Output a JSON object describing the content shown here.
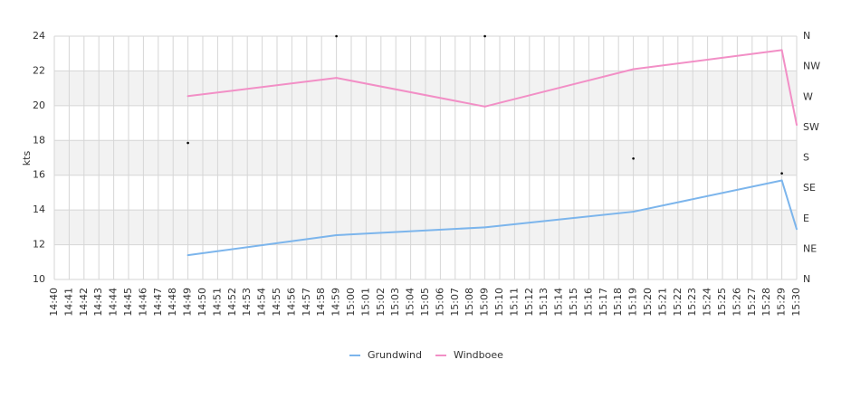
{
  "chart_data": {
    "type": "line",
    "y_label": "kts",
    "categories": [
      "14:40",
      "14:41",
      "14:42",
      "14:43",
      "14:44",
      "14:45",
      "14:46",
      "14:47",
      "14:48",
      "14:49",
      "14:50",
      "14:51",
      "14:52",
      "14:53",
      "14:54",
      "14:55",
      "14:56",
      "14:57",
      "14:58",
      "14:59",
      "15:00",
      "15:01",
      "15:02",
      "15:03",
      "15:04",
      "15:05",
      "15:06",
      "15:07",
      "15:08",
      "15:09",
      "15:10",
      "15:11",
      "15:12",
      "15:13",
      "15:14",
      "15:15",
      "15:16",
      "15:17",
      "15:18",
      "15:19",
      "15:20",
      "15:21",
      "15:22",
      "15:23",
      "15:24",
      "15:25",
      "15:26",
      "15:27",
      "15:28",
      "15:29",
      "15:30"
    ],
    "series": [
      {
        "name": "Grundwind",
        "color": "#7cb5ec",
        "values": [
          null,
          null,
          null,
          null,
          null,
          null,
          null,
          null,
          null,
          11.4,
          null,
          null,
          null,
          null,
          null,
          null,
          null,
          null,
          null,
          12.55,
          null,
          null,
          null,
          null,
          null,
          null,
          null,
          null,
          null,
          13.0,
          null,
          null,
          null,
          null,
          null,
          null,
          null,
          null,
          null,
          13.9,
          null,
          null,
          null,
          null,
          null,
          null,
          null,
          null,
          null,
          15.7,
          12.9
        ]
      },
      {
        "name": "Windboee",
        "color": "#f28fc6",
        "values": [
          null,
          null,
          null,
          null,
          null,
          null,
          null,
          null,
          null,
          20.55,
          null,
          null,
          null,
          null,
          null,
          null,
          null,
          null,
          null,
          21.6,
          null,
          null,
          null,
          null,
          null,
          null,
          null,
          null,
          null,
          19.95,
          null,
          null,
          null,
          null,
          null,
          null,
          null,
          null,
          null,
          22.1,
          null,
          null,
          null,
          null,
          null,
          null,
          null,
          null,
          null,
          23.2,
          18.9
        ]
      }
    ],
    "direction": {
      "axis": "y2",
      "color": "#000000",
      "values": [
        null,
        null,
        null,
        null,
        null,
        null,
        null,
        null,
        null,
        202,
        null,
        null,
        null,
        null,
        null,
        null,
        null,
        null,
        null,
        360,
        null,
        null,
        null,
        null,
        null,
        null,
        null,
        null,
        null,
        360,
        null,
        null,
        null,
        null,
        null,
        null,
        null,
        null,
        null,
        179,
        null,
        null,
        null,
        null,
        null,
        null,
        null,
        null,
        null,
        157,
        null
      ]
    },
    "ylim": [
      10,
      24
    ],
    "yticks": [
      10,
      12,
      14,
      16,
      18,
      20,
      22,
      24
    ],
    "y2lim": [
      0,
      360
    ],
    "y2ticks": [
      {
        "value": 0,
        "label": "N"
      },
      {
        "value": 45,
        "label": "NE"
      },
      {
        "value": 90,
        "label": "E"
      },
      {
        "value": 135,
        "label": "SE"
      },
      {
        "value": 180,
        "label": "S"
      },
      {
        "value": 225,
        "label": "SW"
      },
      {
        "value": 270,
        "label": "W"
      },
      {
        "value": 315,
        "label": "NW"
      },
      {
        "value": 360,
        "label": "N"
      }
    ],
    "grid": true,
    "band_color": "#f2f2f2",
    "legend": "bottom"
  }
}
